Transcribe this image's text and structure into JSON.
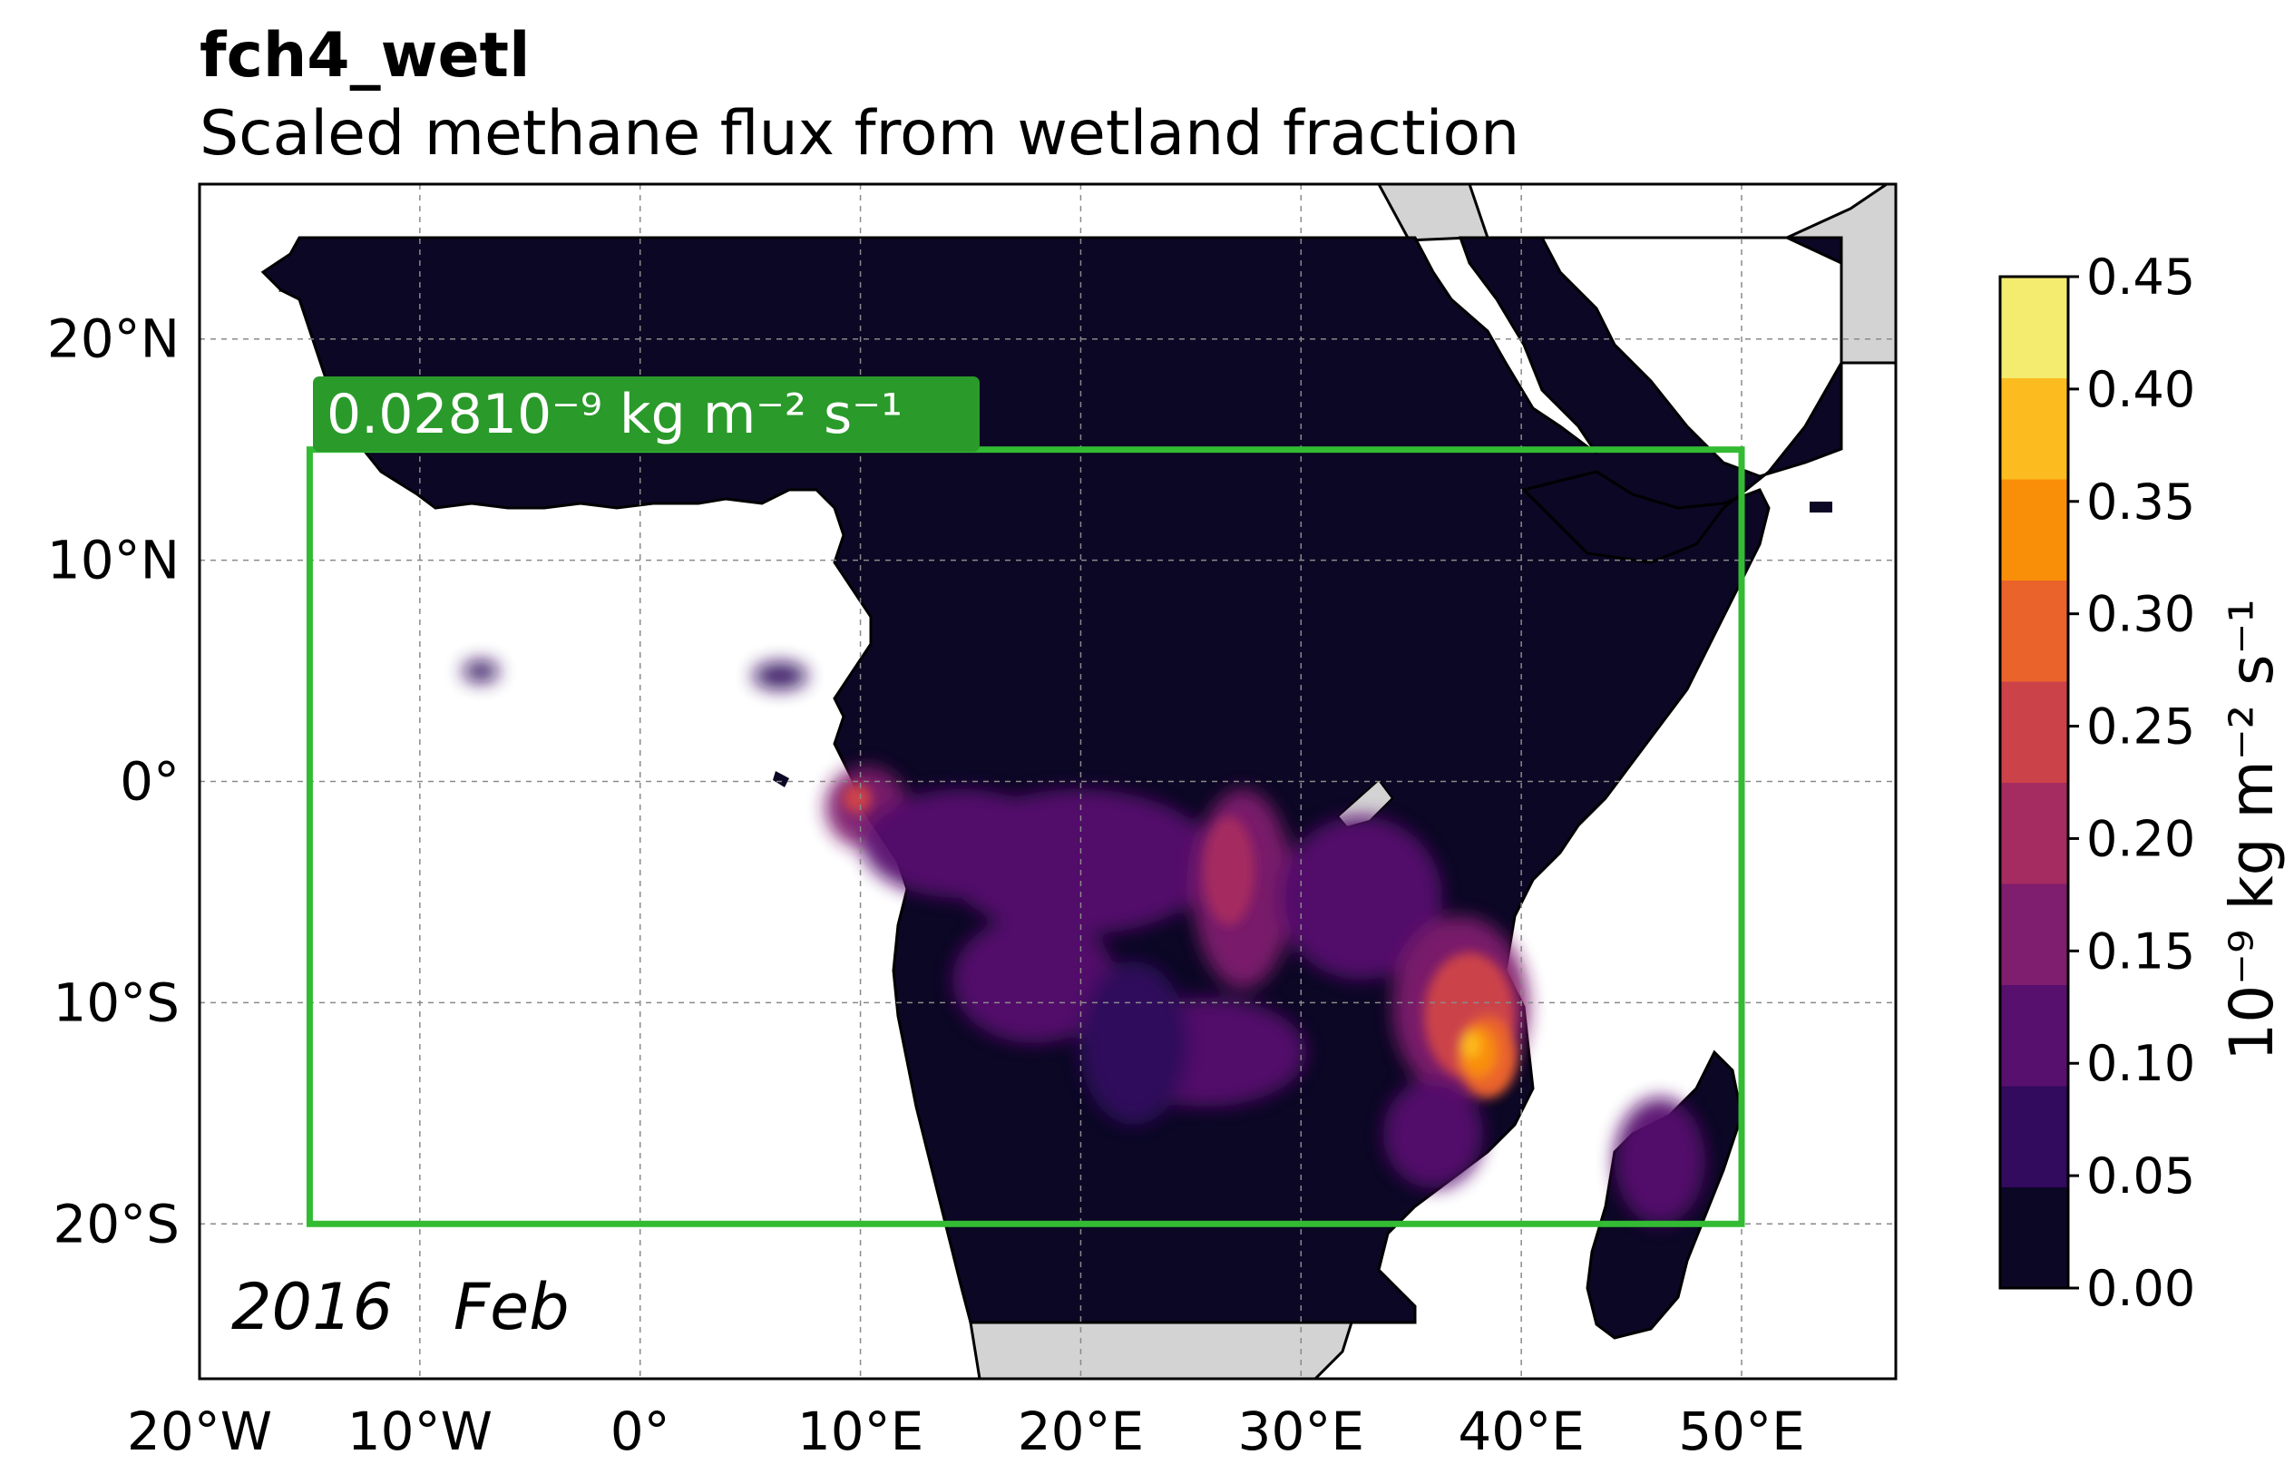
{
  "title": "fch4_wetl",
  "subtitle": "Scaled methane flux from wetland fraction",
  "map": {
    "lon_range": [
      -20,
      57
    ],
    "lat_range": [
      -27,
      27
    ],
    "lon_ticks": [
      {
        "value": -20,
        "label": "20°W"
      },
      {
        "value": -10,
        "label": "10°W"
      },
      {
        "value": 0,
        "label": "0°"
      },
      {
        "value": 10,
        "label": "10°E"
      },
      {
        "value": 20,
        "label": "20°E"
      },
      {
        "value": 30,
        "label": "30°E"
      },
      {
        "value": 40,
        "label": "40°E"
      },
      {
        "value": 50,
        "label": "50°E"
      }
    ],
    "lat_ticks": [
      {
        "value": 20,
        "label": "20°N"
      },
      {
        "value": 10,
        "label": "10°N"
      },
      {
        "value": 0,
        "label": "0°"
      },
      {
        "value": -10,
        "label": "10°S"
      },
      {
        "value": -20,
        "label": "20°S"
      }
    ],
    "gridlines": true,
    "region_box": {
      "lon_min": -15,
      "lon_max": 50,
      "lat_min": -20,
      "lat_max": 15,
      "color": "#33bb33"
    },
    "region_mean_label": "0.02810⁻⁹ kg m⁻² s⁻¹",
    "date_label": "2016   Feb"
  },
  "colorbar": {
    "label": "10⁻⁹ kg m⁻² s⁻¹",
    "tick_labels": [
      "0.00",
      "0.05",
      "0.10",
      "0.15",
      "0.20",
      "0.25",
      "0.30",
      "0.35",
      "0.40",
      "0.45"
    ],
    "colors": [
      "#0b0724",
      "#320a5e",
      "#57106e",
      "#7f1d6e",
      "#a52c60",
      "#cc4249",
      "#ea632a",
      "#f98e09",
      "#fcbc1f",
      "#f3ec6f"
    ]
  },
  "colors": {
    "land_masked": "#d3d3d3",
    "ocean": "#ffffff",
    "coast": "#000000"
  }
}
